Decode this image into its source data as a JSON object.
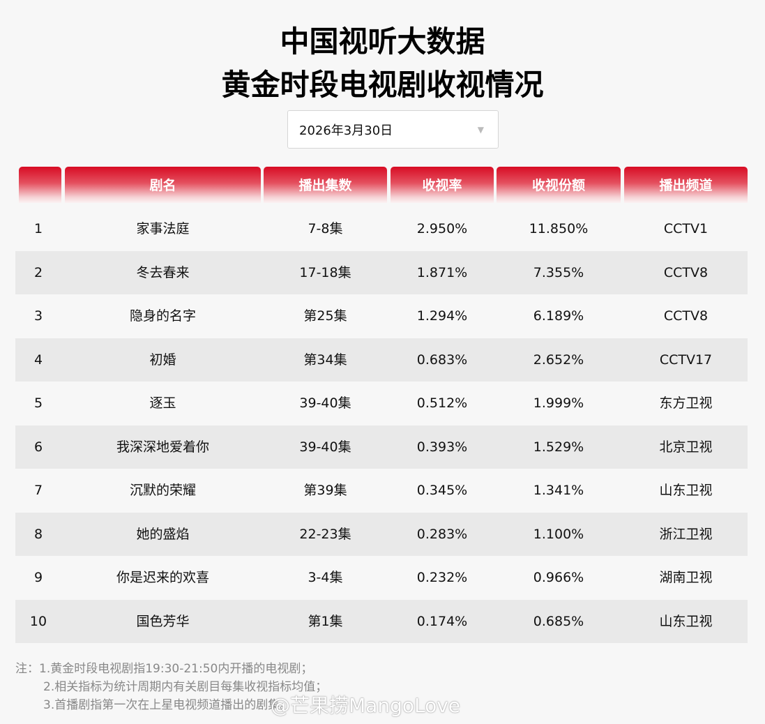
{
  "header": {
    "title_line1": "中国视听大数据",
    "title_line2": "黄金时段电视剧收视情况"
  },
  "date_selector": {
    "value": "2026年3月30日",
    "icon": "caret-down-icon"
  },
  "table": {
    "columns": [
      "",
      "剧名",
      "播出集数",
      "收视率",
      "收视份额",
      "播出频道"
    ],
    "rows": [
      {
        "rank": "1",
        "title": "家事法庭",
        "episodes": "7-8集",
        "rating": "2.950%",
        "share": "11.850%",
        "channel": "CCTV1"
      },
      {
        "rank": "2",
        "title": "冬去春来",
        "episodes": "17-18集",
        "rating": "1.871%",
        "share": "7.355%",
        "channel": "CCTV8"
      },
      {
        "rank": "3",
        "title": "隐身的名字",
        "episodes": "第25集",
        "rating": "1.294%",
        "share": "6.189%",
        "channel": "CCTV8"
      },
      {
        "rank": "4",
        "title": "初婚",
        "episodes": "第34集",
        "rating": "0.683%",
        "share": "2.652%",
        "channel": "CCTV17"
      },
      {
        "rank": "5",
        "title": "逐玉",
        "episodes": "39-40集",
        "rating": "0.512%",
        "share": "1.999%",
        "channel": "东方卫视"
      },
      {
        "rank": "6",
        "title": "我深深地爱着你",
        "episodes": "39-40集",
        "rating": "0.393%",
        "share": "1.529%",
        "channel": "北京卫视"
      },
      {
        "rank": "7",
        "title": "沉默的荣耀",
        "episodes": "第39集",
        "rating": "0.345%",
        "share": "1.341%",
        "channel": "山东卫视"
      },
      {
        "rank": "8",
        "title": "她的盛焰",
        "episodes": "22-23集",
        "rating": "0.283%",
        "share": "1.100%",
        "channel": "浙江卫视"
      },
      {
        "rank": "9",
        "title": "你是迟来的欢喜",
        "episodes": "3-4集",
        "rating": "0.232%",
        "share": "0.966%",
        "channel": "湖南卫视"
      },
      {
        "rank": "10",
        "title": "国色芳华",
        "episodes": "第1集",
        "rating": "0.174%",
        "share": "0.685%",
        "channel": "山东卫视"
      }
    ]
  },
  "notes": {
    "prefix": "注：",
    "lines": [
      "1.黄金时段电视剧指19:30-21:50内开播的电视剧；",
      "2.相关指标为统计周期内有关剧目每集收视指标均值；",
      "3.首播剧指第一次在上星电视频道播出的剧集。"
    ]
  },
  "watermark": "@芒果捞MangoLove",
  "colors": {
    "header_red": "#d80c24",
    "row_alt": "#e9e9e9",
    "background": "#f7f7f7"
  }
}
